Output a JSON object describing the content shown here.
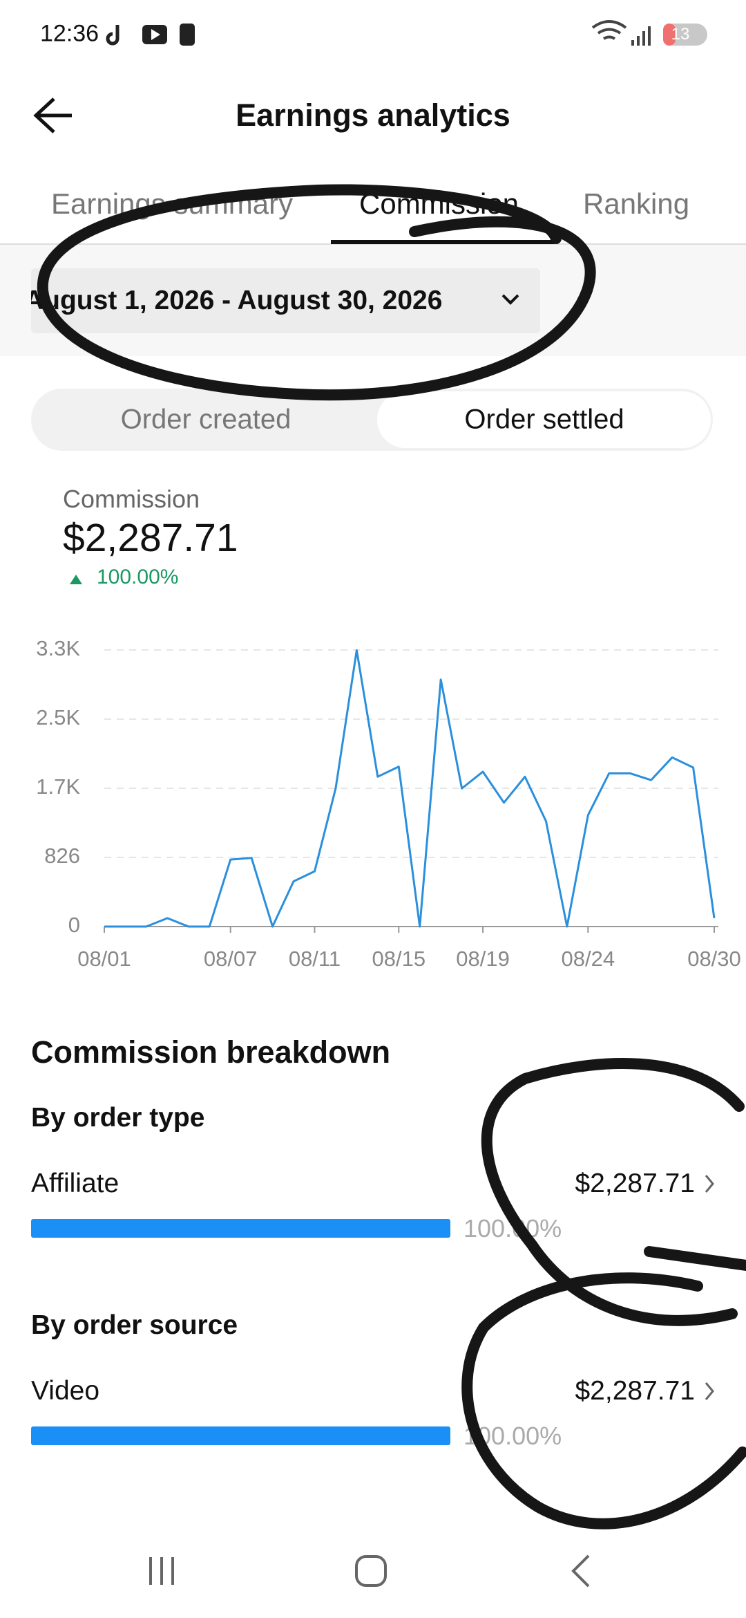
{
  "status_bar": {
    "time": "12:36",
    "battery": "13"
  },
  "header": {
    "title": "Earnings analytics"
  },
  "tabs": [
    "Earnings summary",
    "Commission",
    "Ranking"
  ],
  "date_range": "August 1, 2026 - August 30, 2026",
  "toggle": [
    "Order created",
    "Order settled"
  ],
  "summary": {
    "label": "Commission",
    "amount": "$2,287.71",
    "change": "100.00%"
  },
  "chart_data": {
    "type": "line",
    "categories": [
      "08/01",
      null,
      null,
      null,
      null,
      null,
      "08/07",
      null,
      null,
      null,
      "08/11",
      null,
      null,
      null,
      "08/15",
      null,
      null,
      null,
      "08/19",
      null,
      null,
      null,
      null,
      "08/24",
      null,
      null,
      null,
      null,
      null,
      "08/30"
    ],
    "series": [
      {
        "name": "Commission",
        "color": "#2a8fdc",
        "values": [
          0,
          0,
          0,
          100,
          0,
          0,
          800,
          820,
          0,
          540,
          660,
          1650,
          3300,
          1790,
          1910,
          0,
          2950,
          1650,
          1850,
          1480,
          1790,
          1260,
          0,
          1330,
          1830,
          1830,
          1750,
          2020,
          1900,
          100
        ]
      }
    ],
    "ylim": [
      0,
      3304
    ],
    "yticks": [
      0,
      826,
      {
        "value": 1652,
        "label": "1.7K"
      },
      {
        "value": 2478,
        "label": "2.5K"
      },
      {
        "value": 3304,
        "label": "3.3K"
      }
    ],
    "grid": true
  },
  "breakdown": {
    "title": "Commission breakdown",
    "sections": [
      {
        "heading": "By order type",
        "item": "Affiliate",
        "amount": "$2,287.71",
        "share": "100.00%"
      },
      {
        "heading": "By order source",
        "item": "Video",
        "amount": "$2,287.71",
        "share": "100.00%"
      }
    ]
  }
}
